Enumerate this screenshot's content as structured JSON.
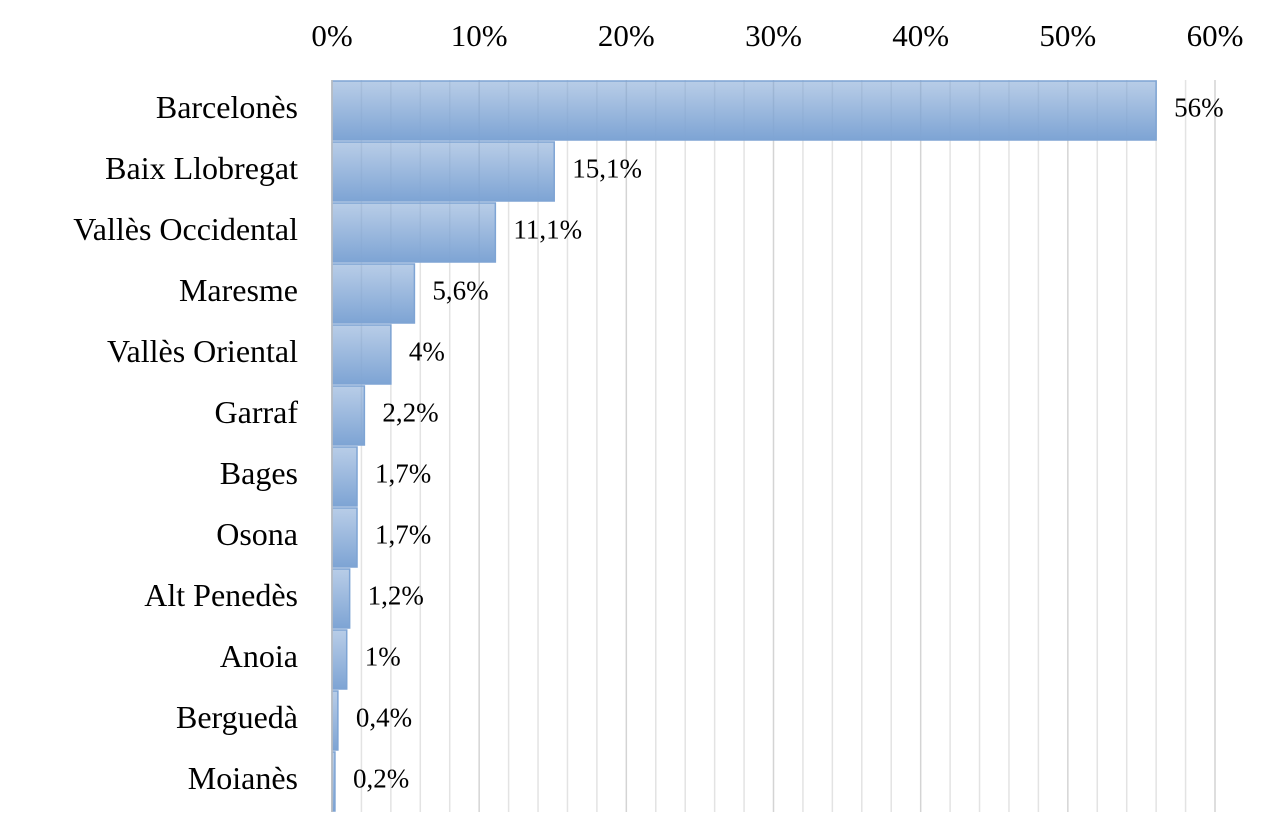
{
  "chart_data": {
    "type": "barh",
    "categories": [
      "Barcelonès",
      "Baix Llobregat",
      "Vallès Occidental",
      "Maresme",
      "Vallès Oriental",
      "Garraf",
      "Bages",
      "Osona",
      "Alt Penedès",
      "Anoia",
      "Berguedà",
      "Moianès"
    ],
    "values": [
      56,
      15.1,
      11.1,
      5.6,
      4,
      2.2,
      1.7,
      1.7,
      1.2,
      1,
      0.4,
      0.2
    ],
    "value_labels": [
      "56%",
      "15,1%",
      "11,1%",
      "5,6%",
      "4%",
      "2,2%",
      "1,7%",
      "1,7%",
      "1,2%",
      "1%",
      "0,4%",
      "0,2%"
    ],
    "color": "#7ea4d4",
    "xlim": [
      0,
      60
    ],
    "xticks": [
      {
        "value": 0,
        "label": "0%"
      },
      {
        "value": 10,
        "label": "10%"
      },
      {
        "value": 20,
        "label": "20%"
      },
      {
        "value": 30,
        "label": "30%"
      },
      {
        "value": 40,
        "label": "40%"
      },
      {
        "value": 50,
        "label": "50%"
      },
      {
        "value": 60,
        "label": "60%"
      }
    ],
    "xticks_minor": [
      2,
      4,
      6,
      8,
      12,
      14,
      16,
      18,
      22,
      24,
      26,
      28,
      32,
      34,
      36,
      38,
      42,
      44,
      46,
      48,
      52,
      54,
      56,
      58
    ],
    "grid": true
  }
}
